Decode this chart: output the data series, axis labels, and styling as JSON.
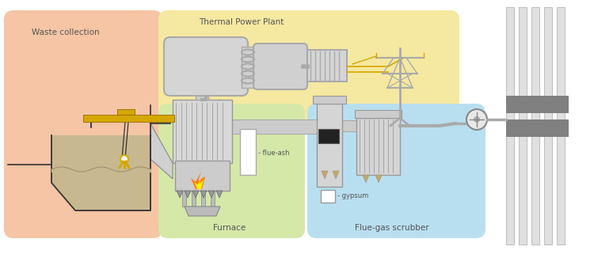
{
  "waste_collection_bg": "#f5c5a5",
  "thermal_power_bg": "#f5e8a0",
  "furnace_bg": "#d5e8a8",
  "fluegas_bg": "#b8dff0",
  "waste_label": "Waste collection",
  "furnace_label": "Furnace",
  "thermal_label": "Thermal Power Plant",
  "fluegas_label": "Flue-gas scrubber",
  "flue_ash_label": "- flue-ash",
  "gypsum_label": "- gypsum",
  "crane_color": "#d4a800",
  "pipe_gray": "#b0b0b0",
  "pipe_dark": "#888888",
  "struct_gray": "#c8c8c8",
  "dark_line": "#444444",
  "waste_pit_fill": "#c8b890",
  "label_color": "#555555",
  "figwidth": 7.5,
  "figheight": 3.21
}
